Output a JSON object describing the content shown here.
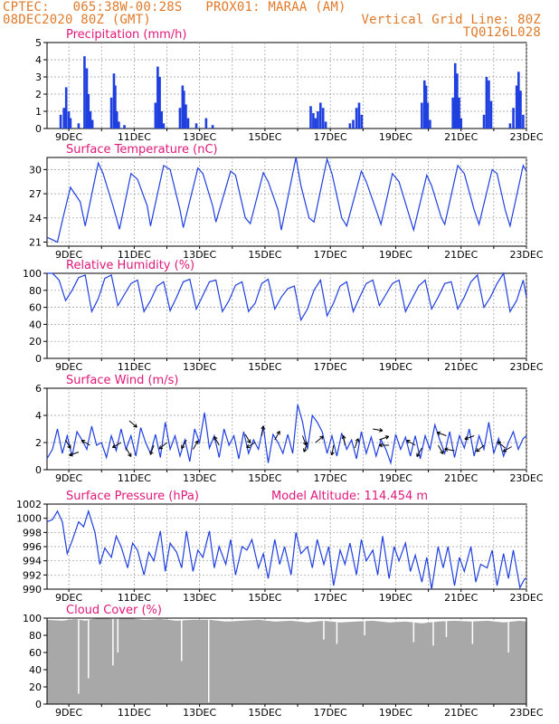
{
  "header": {
    "line1_left": "CPTEC:   065:38W-00:28S   PROX01: MARAA (AM)",
    "line2_left": "08DEC2020 80Z (GMT)",
    "line2_right": "Vertical Grid Line: 80Z",
    "line3_right": "TQ0126L028"
  },
  "colors": {
    "header": "#e07a2a",
    "title": "#e0187a",
    "series": "#1f3fdf",
    "cloud": "#a8a8a8"
  },
  "x_axis": {
    "labels": [
      "9DEC",
      "11DEC",
      "13DEC",
      "15DEC",
      "17DEC",
      "19DEC",
      "21DEC",
      "23DEC"
    ]
  },
  "chart_data": [
    {
      "type": "bar",
      "title": "Precipitation (mm/h)",
      "ylim": [
        0,
        5
      ],
      "yticks": [
        0,
        1,
        2,
        3,
        4,
        5
      ],
      "grid": true,
      "x_start_day": 8.333,
      "x_end_day": 23.0,
      "events": [
        [
          8.75,
          0.8
        ],
        [
          8.85,
          1.2
        ],
        [
          8.92,
          2.4
        ],
        [
          9.0,
          1.0
        ],
        [
          9.05,
          0.6
        ],
        [
          9.3,
          0.3
        ],
        [
          9.48,
          4.2
        ],
        [
          9.55,
          3.5
        ],
        [
          9.6,
          2.0
        ],
        [
          9.66,
          1.0
        ],
        [
          9.72,
          0.5
        ],
        [
          10.3,
          1.8
        ],
        [
          10.38,
          3.2
        ],
        [
          10.42,
          2.5
        ],
        [
          10.47,
          1.0
        ],
        [
          10.53,
          0.4
        ],
        [
          10.7,
          0.2
        ],
        [
          11.65,
          1.5
        ],
        [
          11.72,
          3.6
        ],
        [
          11.78,
          3.0
        ],
        [
          11.84,
          1.0
        ],
        [
          11.9,
          0.3
        ],
        [
          12.4,
          1.2
        ],
        [
          12.48,
          2.5
        ],
        [
          12.52,
          2.2
        ],
        [
          12.58,
          1.4
        ],
        [
          12.65,
          0.6
        ],
        [
          12.9,
          0.3
        ],
        [
          13.2,
          0.6
        ],
        [
          13.4,
          0.2
        ],
        [
          16.4,
          1.3
        ],
        [
          16.48,
          0.9
        ],
        [
          16.55,
          0.6
        ],
        [
          16.62,
          1.0
        ],
        [
          16.7,
          1.5
        ],
        [
          16.78,
          1.2
        ],
        [
          16.86,
          0.4
        ],
        [
          17.6,
          0.3
        ],
        [
          17.7,
          0.5
        ],
        [
          17.8,
          1.2
        ],
        [
          17.88,
          1.5
        ],
        [
          17.96,
          0.8
        ],
        [
          19.8,
          1.5
        ],
        [
          19.88,
          2.8
        ],
        [
          19.93,
          2.5
        ],
        [
          19.98,
          1.5
        ],
        [
          20.05,
          0.5
        ],
        [
          20.75,
          1.8
        ],
        [
          20.82,
          3.8
        ],
        [
          20.88,
          3.2
        ],
        [
          20.94,
          1.8
        ],
        [
          21.0,
          0.6
        ],
        [
          21.7,
          0.8
        ],
        [
          21.78,
          3.0
        ],
        [
          21.85,
          2.8
        ],
        [
          21.92,
          1.6
        ],
        [
          22.5,
          0.3
        ],
        [
          22.6,
          1.2
        ],
        [
          22.7,
          2.5
        ],
        [
          22.76,
          3.3
        ],
        [
          22.82,
          2.2
        ],
        [
          22.9,
          0.8
        ]
      ]
    },
    {
      "type": "line",
      "title": "Surface Temperature (nC)",
      "ylim": [
        20.5,
        31.5
      ],
      "yticks": [
        21,
        24,
        27,
        30
      ],
      "grid": true,
      "x": [
        8.33,
        8.5,
        8.65,
        8.85,
        9.05,
        9.35,
        9.5,
        9.9,
        10.05,
        10.35,
        10.55,
        10.9,
        11.1,
        11.4,
        11.5,
        11.9,
        12.1,
        12.4,
        12.5,
        12.95,
        13.1,
        13.4,
        13.5,
        13.95,
        14.1,
        14.4,
        14.55,
        14.95,
        15.1,
        15.4,
        15.5,
        15.95,
        16.1,
        16.35,
        16.5,
        16.9,
        17.05,
        17.35,
        17.5,
        17.95,
        18.1,
        18.4,
        18.55,
        18.9,
        19.1,
        19.4,
        19.55,
        19.95,
        20.1,
        20.4,
        20.5,
        20.9,
        21.1,
        21.4,
        21.55,
        21.95,
        22.1,
        22.35,
        22.5,
        22.9,
        23.0
      ],
      "values": [
        21.6,
        21.3,
        21.0,
        24.5,
        27.8,
        26.0,
        23.0,
        30.8,
        29.5,
        25.5,
        22.6,
        29.5,
        28.8,
        25.5,
        23.0,
        30.5,
        30.0,
        25.0,
        22.8,
        30.2,
        29.5,
        25.5,
        23.5,
        29.8,
        29.3,
        24.0,
        23.3,
        29.6,
        28.5,
        25.0,
        22.5,
        31.5,
        28.0,
        24.0,
        23.5,
        31.3,
        29.5,
        24.0,
        23.0,
        29.8,
        28.5,
        25.0,
        23.2,
        29.5,
        28.5,
        24.5,
        22.5,
        29.3,
        28.0,
        24.0,
        23.2,
        30.5,
        29.5,
        25.0,
        23.2,
        30.0,
        29.5,
        25.0,
        23.0,
        30.5,
        29.8
      ]
    },
    {
      "type": "line",
      "title": "Relative Humidity (%)",
      "ylim": [
        0,
        100
      ],
      "yticks": [
        0,
        20,
        40,
        60,
        80,
        100
      ],
      "grid": true,
      "x": [
        8.33,
        8.5,
        8.7,
        8.9,
        9.1,
        9.3,
        9.5,
        9.7,
        9.9,
        10.1,
        10.3,
        10.5,
        10.7,
        10.9,
        11.1,
        11.3,
        11.5,
        11.7,
        11.9,
        12.1,
        12.3,
        12.5,
        12.7,
        12.9,
        13.1,
        13.3,
        13.5,
        13.7,
        13.9,
        14.1,
        14.3,
        14.5,
        14.7,
        14.9,
        15.1,
        15.3,
        15.5,
        15.7,
        15.9,
        16.1,
        16.3,
        16.5,
        16.7,
        16.9,
        17.1,
        17.3,
        17.5,
        17.7,
        17.9,
        18.1,
        18.3,
        18.5,
        18.7,
        18.9,
        19.1,
        19.3,
        19.5,
        19.7,
        19.9,
        20.1,
        20.3,
        20.5,
        20.7,
        20.9,
        21.1,
        21.3,
        21.5,
        21.7,
        21.9,
        22.1,
        22.3,
        22.5,
        22.7,
        22.9,
        23.0
      ],
      "values": [
        100,
        100,
        92,
        68,
        80,
        95,
        98,
        55,
        70,
        94,
        98,
        62,
        75,
        88,
        92,
        55,
        68,
        85,
        90,
        56,
        72,
        90,
        93,
        58,
        74,
        90,
        92,
        55,
        68,
        86,
        90,
        55,
        65,
        88,
        93,
        58,
        72,
        82,
        85,
        45,
        58,
        80,
        92,
        50,
        65,
        85,
        90,
        55,
        72,
        88,
        92,
        62,
        75,
        88,
        92,
        55,
        70,
        85,
        92,
        58,
        72,
        88,
        90,
        58,
        72,
        90,
        98,
        60,
        72,
        88,
        100,
        55,
        68,
        92,
        72
      ]
    },
    {
      "type": "line",
      "title": "Surface Wind (m/s)",
      "ylim": [
        0,
        6
      ],
      "yticks": [
        0,
        2,
        4,
        6
      ],
      "grid": true,
      "x": [
        8.33,
        8.5,
        8.65,
        8.8,
        8.95,
        9.1,
        9.25,
        9.4,
        9.55,
        9.7,
        9.85,
        10.0,
        10.15,
        10.3,
        10.45,
        10.6,
        10.75,
        10.9,
        11.05,
        11.2,
        11.35,
        11.5,
        11.65,
        11.8,
        11.95,
        12.1,
        12.25,
        12.4,
        12.55,
        12.7,
        12.85,
        13.0,
        13.15,
        13.3,
        13.45,
        13.6,
        13.75,
        13.9,
        14.05,
        14.2,
        14.35,
        14.5,
        14.65,
        14.8,
        14.95,
        15.1,
        15.25,
        15.4,
        15.55,
        15.7,
        15.85,
        16.0,
        16.15,
        16.3,
        16.45,
        16.6,
        16.75,
        16.9,
        17.05,
        17.2,
        17.35,
        17.5,
        17.65,
        17.8,
        17.95,
        18.1,
        18.25,
        18.4,
        18.55,
        18.7,
        18.85,
        19.0,
        19.15,
        19.3,
        19.45,
        19.6,
        19.75,
        19.9,
        20.05,
        20.2,
        20.35,
        20.5,
        20.65,
        20.8,
        20.95,
        21.1,
        21.25,
        21.4,
        21.55,
        21.7,
        21.85,
        22.0,
        22.15,
        22.3,
        22.45,
        22.6,
        22.75,
        22.9,
        23.0
      ],
      "values": [
        0.8,
        1.5,
        3.0,
        1.2,
        2.5,
        1.0,
        2.8,
        2.2,
        1.5,
        3.2,
        1.8,
        2.0,
        0.9,
        2.5,
        1.4,
        3.0,
        1.5,
        2.5,
        1.0,
        3.1,
        2.0,
        1.2,
        2.6,
        0.9,
        3.5,
        1.5,
        2.5,
        1.0,
        2.2,
        0.6,
        3.0,
        2.0,
        4.2,
        1.6,
        2.5,
        0.9,
        3.0,
        1.8,
        2.5,
        0.8,
        2.8,
        1.2,
        2.2,
        1.5,
        3.2,
        0.5,
        2.6,
        2.0,
        1.2,
        2.6,
        1.2,
        4.8,
        3.5,
        1.5,
        4.0,
        3.5,
        2.8,
        1.2,
        2.5,
        1.0,
        2.7,
        1.5,
        2.2,
        0.8,
        2.8,
        1.2,
        2.4,
        1.0,
        2.2,
        1.5,
        0.5,
        2.6,
        1.5,
        2.4,
        1.0,
        2.5,
        0.8,
        2.5,
        1.5,
        3.3,
        2.2,
        1.2,
        2.8,
        0.9,
        2.5,
        1.6,
        3.0,
        1.0,
        2.5,
        1.5,
        3.5,
        1.2,
        2.3,
        1.0,
        2.0,
        2.8,
        1.5,
        2.3,
        2.5
      ],
      "wind_vectors": [
        [
          8.9,
          2.2,
          300
        ],
        [
          9.3,
          1.3,
          200
        ],
        [
          9.65,
          1.8,
          150
        ],
        [
          10.6,
          2.0,
          210
        ],
        [
          10.75,
          1.6,
          300
        ],
        [
          10.85,
          3.6,
          320
        ],
        [
          11.6,
          1.8,
          250
        ],
        [
          12.0,
          2.0,
          220
        ],
        [
          12.6,
          2.2,
          240
        ],
        [
          12.8,
          1.5,
          60
        ],
        [
          13.6,
          1.8,
          120
        ],
        [
          14.4,
          2.6,
          300
        ],
        [
          14.7,
          2.0,
          210
        ],
        [
          14.9,
          2.5,
          80
        ],
        [
          15.3,
          2.2,
          60
        ],
        [
          16.15,
          2.5,
          290
        ],
        [
          16.3,
          2.0,
          250
        ],
        [
          16.55,
          2.0,
          40
        ],
        [
          17.1,
          1.8,
          260
        ],
        [
          17.45,
          1.8,
          100
        ],
        [
          17.75,
          1.6,
          70
        ],
        [
          18.3,
          3.0,
          350
        ],
        [
          18.5,
          2.2,
          20
        ],
        [
          18.8,
          1.8,
          180
        ],
        [
          19.6,
          1.8,
          150
        ],
        [
          19.8,
          1.6,
          240
        ],
        [
          20.3,
          1.8,
          300
        ],
        [
          20.55,
          2.5,
          160
        ],
        [
          20.8,
          1.4,
          170
        ],
        [
          21.4,
          2.5,
          200
        ],
        [
          21.7,
          1.8,
          220
        ],
        [
          22.35,
          1.6,
          140
        ],
        [
          22.55,
          1.7,
          210
        ]
      ]
    },
    {
      "type": "line",
      "title": "Surface Pressure (hPa)",
      "annotation": "Model Altitude: 114.454 m",
      "ylim": [
        990,
        1002
      ],
      "yticks": [
        990,
        992,
        994,
        996,
        998,
        1000,
        1002
      ],
      "grid": true,
      "x": [
        8.33,
        8.5,
        8.65,
        8.8,
        8.95,
        9.1,
        9.3,
        9.45,
        9.6,
        9.8,
        9.95,
        10.1,
        10.3,
        10.45,
        10.6,
        10.8,
        10.95,
        11.1,
        11.3,
        11.45,
        11.6,
        11.8,
        11.95,
        12.1,
        12.3,
        12.45,
        12.6,
        12.8,
        12.95,
        13.1,
        13.3,
        13.45,
        13.6,
        13.8,
        13.95,
        14.1,
        14.3,
        14.45,
        14.6,
        14.8,
        14.95,
        15.1,
        15.3,
        15.45,
        15.6,
        15.8,
        15.95,
        16.1,
        16.3,
        16.45,
        16.6,
        16.8,
        16.95,
        17.1,
        17.3,
        17.45,
        17.6,
        17.8,
        17.95,
        18.1,
        18.3,
        18.45,
        18.6,
        18.8,
        18.95,
        19.1,
        19.3,
        19.45,
        19.6,
        19.8,
        19.95,
        20.1,
        20.3,
        20.45,
        20.6,
        20.8,
        20.95,
        21.1,
        21.3,
        21.45,
        21.6,
        21.8,
        21.95,
        22.1,
        22.3,
        22.45,
        22.6,
        22.8,
        22.95,
        23.0
      ],
      "values": [
        999.5,
        999.8,
        1001.0,
        999.5,
        995.0,
        996.8,
        999.5,
        998.8,
        1001.0,
        998.0,
        993.5,
        995.8,
        994.5,
        997.5,
        996.0,
        993.0,
        996.5,
        995.5,
        992.0,
        995.2,
        994.0,
        998.2,
        992.5,
        996.5,
        995.2,
        993.0,
        998.2,
        992.5,
        995.5,
        994.5,
        998.2,
        993.0,
        996.0,
        993.5,
        997.0,
        992.0,
        996.0,
        995.5,
        997.0,
        993.0,
        995.0,
        991.5,
        997.0,
        993.5,
        996.0,
        992.0,
        998.0,
        995.0,
        996.0,
        993.0,
        997.0,
        993.5,
        996.0,
        990.5,
        995.5,
        993.5,
        996.5,
        992.0,
        997.0,
        994.0,
        995.5,
        992.0,
        997.5,
        991.5,
        996.0,
        994.0,
        996.5,
        992.5,
        994.8,
        991.0,
        994.5,
        990.0,
        996.0,
        993.0,
        996.0,
        990.5,
        994.5,
        992.5,
        996.0,
        991.0,
        993.5,
        993.0,
        995.5,
        990.5,
        995.0,
        991.5,
        995.5,
        990.2,
        991.5,
        991.5
      ]
    },
    {
      "type": "area",
      "title": "Cloud Cover (%)",
      "ylim": [
        0,
        100
      ],
      "yticks": [
        0,
        20,
        40,
        60,
        80,
        100
      ],
      "grid": true,
      "x": [
        8.33,
        8.8,
        9.2,
        9.5,
        9.7,
        10.0,
        10.4,
        10.8,
        11.3,
        11.8,
        12.3,
        12.8,
        13.3,
        13.8,
        14.3,
        14.8,
        15.3,
        15.8,
        16.3,
        16.8,
        17.3,
        17.8,
        18.3,
        18.8,
        19.3,
        19.8,
        20.3,
        20.8,
        21.3,
        21.8,
        22.3,
        22.8,
        23.0
      ],
      "values": [
        98,
        97,
        99,
        97,
        99,
        100,
        99,
        100,
        98,
        99,
        97,
        98,
        98,
        96,
        97,
        98,
        96,
        97,
        95,
        97,
        95,
        96,
        97,
        95,
        96,
        94,
        96,
        97,
        96,
        97,
        95,
        97,
        96
      ],
      "dips": [
        [
          9.3,
          12
        ],
        [
          9.6,
          30
        ],
        [
          10.35,
          45
        ],
        [
          10.5,
          60
        ],
        [
          12.45,
          50
        ],
        [
          13.28,
          2
        ],
        [
          16.8,
          75
        ],
        [
          17.2,
          70
        ],
        [
          18.05,
          80
        ],
        [
          19.55,
          72
        ],
        [
          20.15,
          68
        ],
        [
          20.55,
          78
        ],
        [
          21.35,
          70
        ],
        [
          22.45,
          60
        ]
      ]
    }
  ]
}
